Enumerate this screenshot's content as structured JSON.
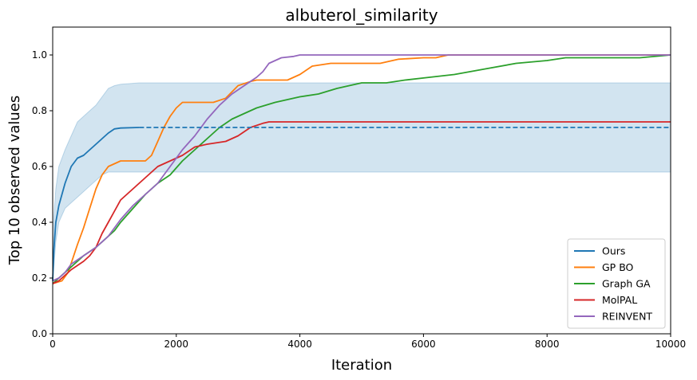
{
  "chart_data": {
    "type": "line",
    "title": "albuterol_similarity",
    "xlabel": "Iteration",
    "ylabel": "Top 10 observed values",
    "xlim": [
      0,
      10000
    ],
    "ylim": [
      0,
      1.1
    ],
    "xticks": [
      0,
      2000,
      4000,
      6000,
      8000,
      10000
    ],
    "yticks": [
      0.0,
      0.2,
      0.4,
      0.6,
      0.8,
      1.0
    ],
    "xtick_labels": [
      "0",
      "2000",
      "4000",
      "6000",
      "8000",
      "10000"
    ],
    "ytick_labels": [
      "0.0",
      "0.2",
      "0.4",
      "0.6",
      "0.8",
      "1.0"
    ],
    "grid": false,
    "legend_position": "lower-right",
    "series": [
      {
        "name": "Ours",
        "color": "#1f77b4",
        "points": [
          [
            0,
            0.19
          ],
          [
            20,
            0.3
          ],
          [
            50,
            0.4
          ],
          [
            100,
            0.46
          ],
          [
            200,
            0.54
          ],
          [
            300,
            0.6
          ],
          [
            400,
            0.63
          ],
          [
            500,
            0.64
          ],
          [
            600,
            0.66
          ],
          [
            700,
            0.68
          ],
          [
            800,
            0.7
          ],
          [
            900,
            0.72
          ],
          [
            1000,
            0.735
          ],
          [
            1100,
            0.738
          ],
          [
            1400,
            0.74
          ]
        ],
        "extension": {
          "style": "dashed",
          "points": [
            [
              1400,
              0.74
            ],
            [
              10000,
              0.74
            ]
          ]
        },
        "band": {
          "x": [
            0,
            20,
            50,
            100,
            200,
            300,
            400,
            500,
            600,
            700,
            800,
            900,
            1000,
            1100,
            1400,
            10000
          ],
          "upper": [
            0.19,
            0.42,
            0.52,
            0.6,
            0.66,
            0.71,
            0.76,
            0.78,
            0.8,
            0.82,
            0.85,
            0.88,
            0.89,
            0.895,
            0.9,
            0.9
          ],
          "lower": [
            0.19,
            0.24,
            0.33,
            0.4,
            0.45,
            0.47,
            0.49,
            0.51,
            0.53,
            0.55,
            0.57,
            0.58,
            0.58,
            0.58,
            0.58,
            0.58
          ]
        }
      },
      {
        "name": "GP BO",
        "color": "#ff7f0e",
        "points": [
          [
            0,
            0.18
          ],
          [
            150,
            0.19
          ],
          [
            250,
            0.22
          ],
          [
            400,
            0.32
          ],
          [
            500,
            0.38
          ],
          [
            600,
            0.45
          ],
          [
            700,
            0.52
          ],
          [
            800,
            0.57
          ],
          [
            900,
            0.6
          ],
          [
            1000,
            0.61
          ],
          [
            1100,
            0.62
          ],
          [
            1500,
            0.62
          ],
          [
            1600,
            0.64
          ],
          [
            1700,
            0.69
          ],
          [
            1800,
            0.74
          ],
          [
            1900,
            0.78
          ],
          [
            2000,
            0.81
          ],
          [
            2100,
            0.83
          ],
          [
            2600,
            0.83
          ],
          [
            2800,
            0.845
          ],
          [
            3000,
            0.89
          ],
          [
            3200,
            0.905
          ],
          [
            3300,
            0.91
          ],
          [
            3800,
            0.91
          ],
          [
            4000,
            0.93
          ],
          [
            4200,
            0.96
          ],
          [
            4500,
            0.97
          ],
          [
            5300,
            0.97
          ],
          [
            5600,
            0.985
          ],
          [
            6000,
            0.99
          ],
          [
            6200,
            0.99
          ],
          [
            6400,
            1.0
          ],
          [
            10000,
            1.0
          ]
        ]
      },
      {
        "name": "Graph GA",
        "color": "#2ca02c",
        "points": [
          [
            0,
            0.18
          ],
          [
            100,
            0.2
          ],
          [
            300,
            0.24
          ],
          [
            500,
            0.28
          ],
          [
            700,
            0.31
          ],
          [
            900,
            0.35
          ],
          [
            1000,
            0.37
          ],
          [
            1100,
            0.4
          ],
          [
            1300,
            0.45
          ],
          [
            1500,
            0.5
          ],
          [
            1700,
            0.54
          ],
          [
            1900,
            0.57
          ],
          [
            2100,
            0.62
          ],
          [
            2300,
            0.66
          ],
          [
            2500,
            0.7
          ],
          [
            2700,
            0.74
          ],
          [
            2900,
            0.77
          ],
          [
            3100,
            0.79
          ],
          [
            3300,
            0.81
          ],
          [
            3600,
            0.83
          ],
          [
            4000,
            0.85
          ],
          [
            4300,
            0.86
          ],
          [
            4600,
            0.88
          ],
          [
            5000,
            0.9
          ],
          [
            5400,
            0.9
          ],
          [
            5700,
            0.91
          ],
          [
            6100,
            0.92
          ],
          [
            6500,
            0.93
          ],
          [
            7000,
            0.95
          ],
          [
            7500,
            0.97
          ],
          [
            8000,
            0.98
          ],
          [
            8300,
            0.99
          ],
          [
            9500,
            0.99
          ],
          [
            10000,
            1.0
          ]
        ]
      },
      {
        "name": "MolPAL",
        "color": "#d62728",
        "points": [
          [
            0,
            0.18
          ],
          [
            100,
            0.19
          ],
          [
            200,
            0.21
          ],
          [
            300,
            0.23
          ],
          [
            500,
            0.26
          ],
          [
            600,
            0.28
          ],
          [
            700,
            0.31
          ],
          [
            800,
            0.36
          ],
          [
            900,
            0.4
          ],
          [
            1000,
            0.44
          ],
          [
            1100,
            0.48
          ],
          [
            1300,
            0.52
          ],
          [
            1500,
            0.56
          ],
          [
            1700,
            0.6
          ],
          [
            1900,
            0.62
          ],
          [
            2100,
            0.64
          ],
          [
            2300,
            0.67
          ],
          [
            2500,
            0.68
          ],
          [
            2800,
            0.69
          ],
          [
            3000,
            0.71
          ],
          [
            3200,
            0.74
          ],
          [
            3400,
            0.755
          ],
          [
            3500,
            0.76
          ],
          [
            10000,
            0.76
          ]
        ]
      },
      {
        "name": "REINVENT",
        "color": "#9467bd",
        "points": [
          [
            0,
            0.19
          ],
          [
            100,
            0.2
          ],
          [
            200,
            0.22
          ],
          [
            300,
            0.25
          ],
          [
            500,
            0.28
          ],
          [
            700,
            0.31
          ],
          [
            900,
            0.35
          ],
          [
            1100,
            0.41
          ],
          [
            1300,
            0.46
          ],
          [
            1500,
            0.5
          ],
          [
            1700,
            0.54
          ],
          [
            1900,
            0.6
          ],
          [
            2100,
            0.66
          ],
          [
            2300,
            0.71
          ],
          [
            2500,
            0.77
          ],
          [
            2700,
            0.82
          ],
          [
            2900,
            0.86
          ],
          [
            3100,
            0.89
          ],
          [
            3300,
            0.92
          ],
          [
            3400,
            0.94
          ],
          [
            3500,
            0.97
          ],
          [
            3700,
            0.99
          ],
          [
            3900,
            0.995
          ],
          [
            4000,
            1.0
          ],
          [
            10000,
            1.0
          ]
        ]
      }
    ]
  }
}
